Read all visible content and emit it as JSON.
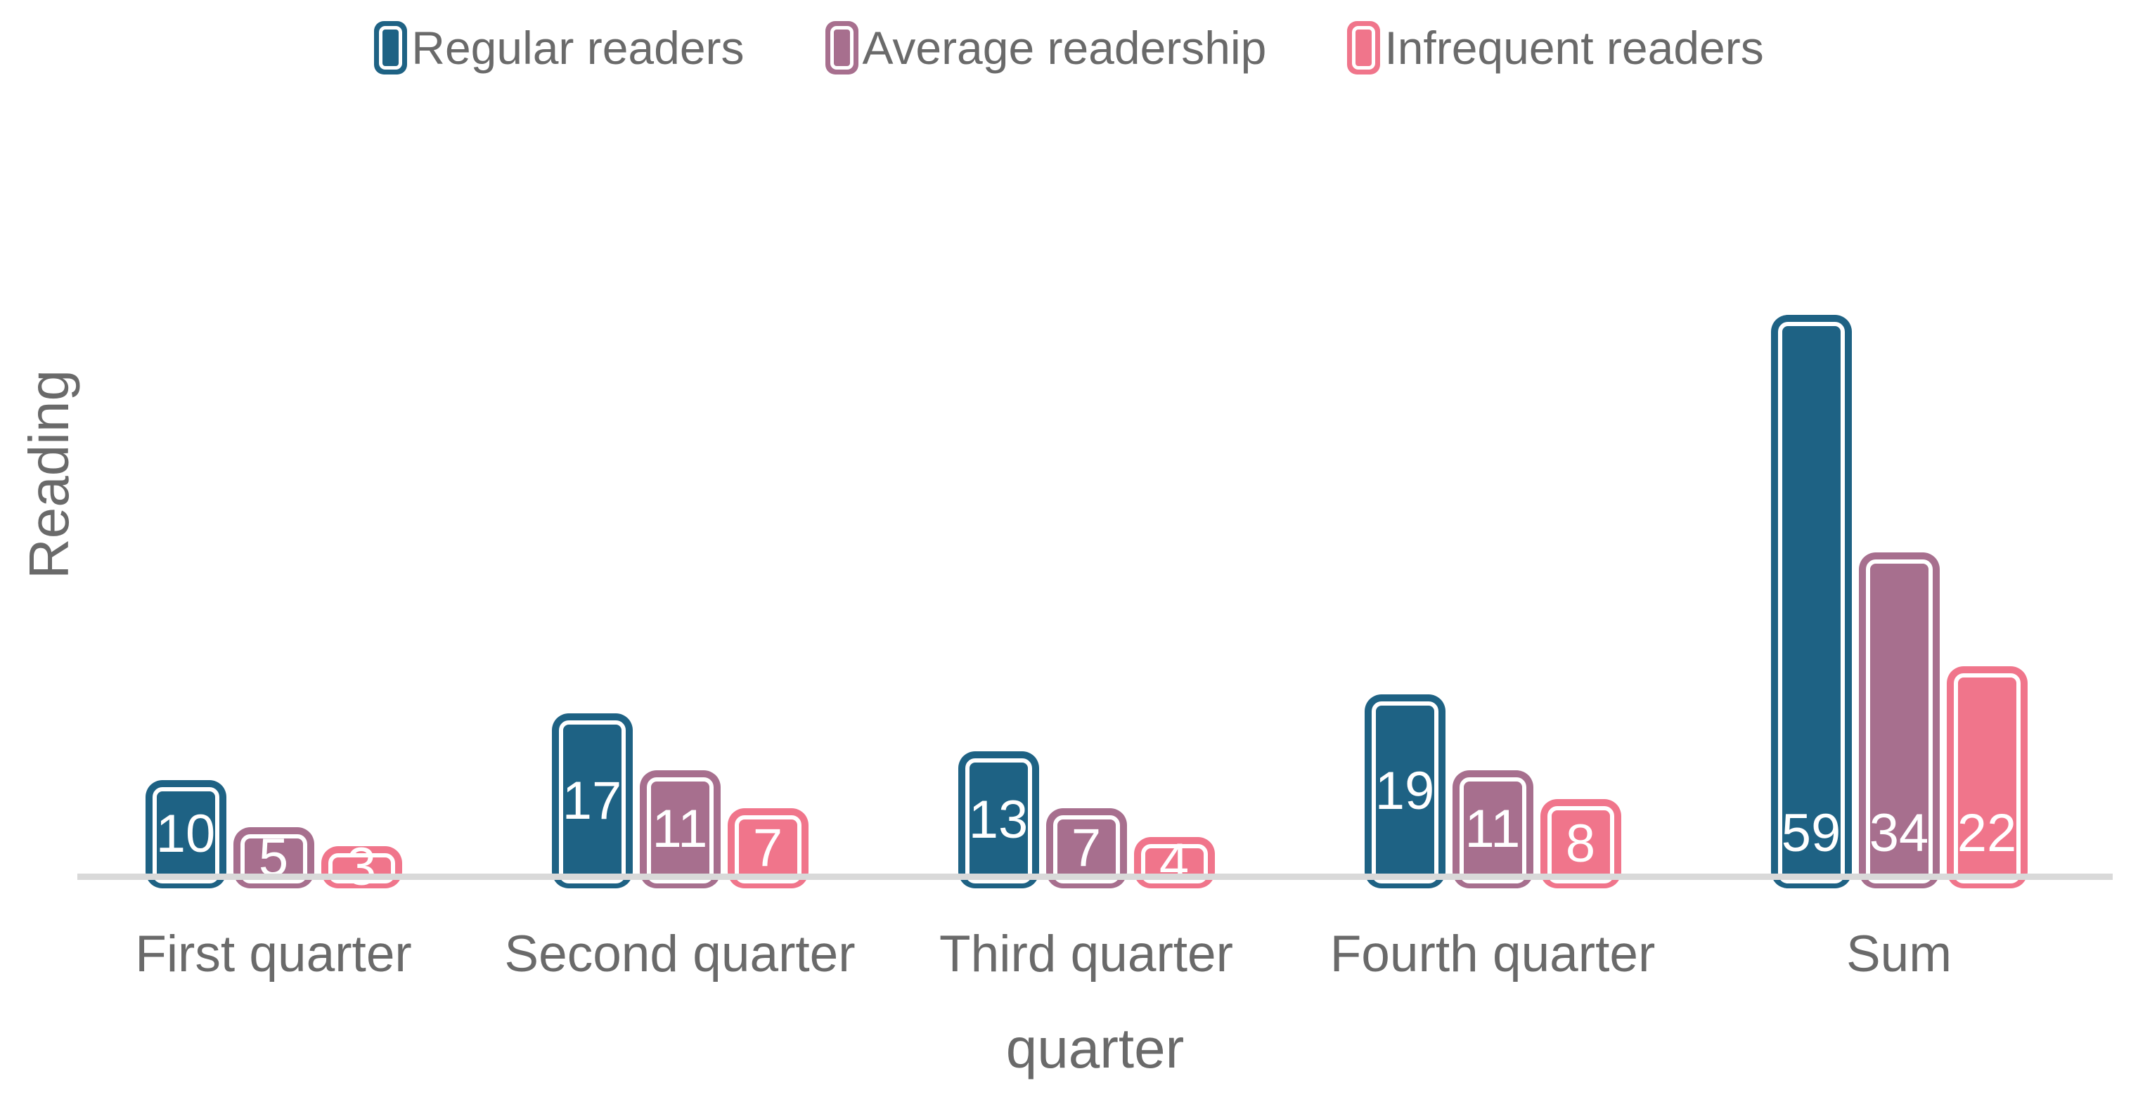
{
  "chart_data": {
    "type": "bar",
    "title": "",
    "xlabel": "quarter",
    "ylabel": "Reading",
    "categories": [
      "First quarter",
      "Second quarter",
      "Third quarter",
      "Fourth quarter",
      "Sum"
    ],
    "series": [
      {
        "name": "Regular readers",
        "color": "#1E6284",
        "values": [
          10,
          17,
          13,
          19,
          59
        ]
      },
      {
        "name": "Average readership",
        "color": "#A76F8E",
        "values": [
          5,
          11,
          7,
          11,
          34
        ]
      },
      {
        "name": "Infrequent readers",
        "color": "#F0758B",
        "values": [
          3,
          7,
          4,
          8,
          22
        ]
      }
    ],
    "value_labels": true,
    "legend_position": "top",
    "grid": false,
    "y_axis_ticks": "none",
    "ylim": [
      0,
      60
    ]
  },
  "styles": {
    "background": "#FFFFFF",
    "text_color": "#6A6A6A",
    "axis_line_color": "#D9D9D9",
    "bar_label_color": "#FFFFFF",
    "bar_outline_color": "#FFFFFF"
  }
}
